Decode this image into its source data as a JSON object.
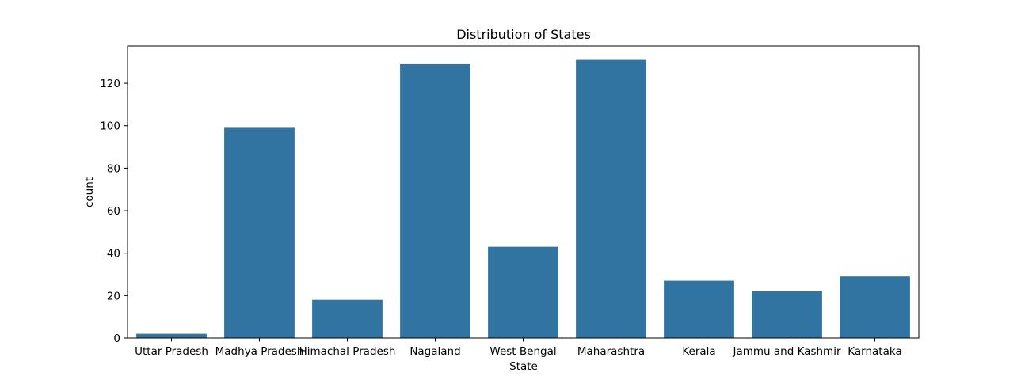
{
  "chart_data": {
    "type": "bar",
    "title": "Distribution of States",
    "xlabel": "State",
    "ylabel": "count",
    "categories": [
      "Uttar Pradesh",
      "Madhya Pradesh",
      "Himachal Pradesh",
      "Nagaland",
      "West Bengal",
      "Maharashtra",
      "Kerala",
      "Jammu and Kashmir",
      "Karnataka"
    ],
    "values": [
      2,
      99,
      18,
      129,
      43,
      131,
      27,
      22,
      29
    ],
    "ylim": [
      0,
      137.55
    ],
    "yticks": [
      0,
      20,
      40,
      60,
      80,
      100,
      120
    ],
    "grid": false,
    "bar_color": "#3274a1"
  }
}
